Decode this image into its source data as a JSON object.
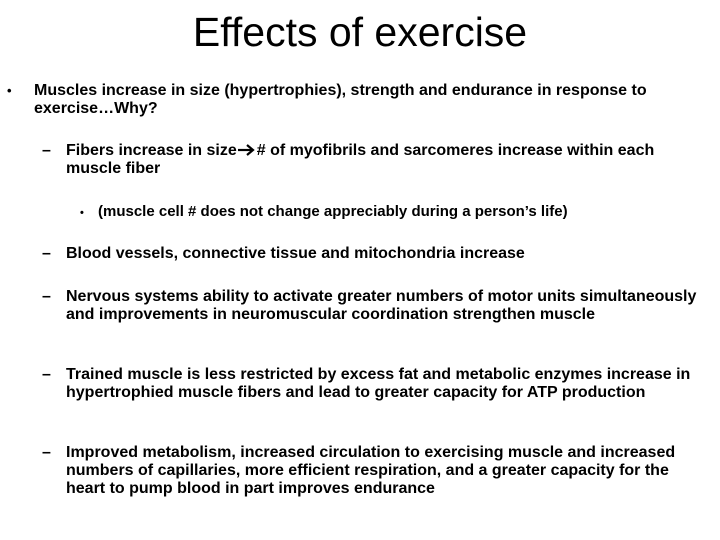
{
  "slide": {
    "title": "Effects of exercise",
    "main_point": "Muscles increase in size (hypertrophies), strength and endurance in response to exercise…Why?",
    "fibers_before_arrow": "Fibers increase in size",
    "fibers_after_arrow": "# of myofibrils and sarcomeres increase within each muscle fiber",
    "cell_note": "(muscle cell # does not change appreciably during a person’s life)",
    "vessels": "Blood vessels, connective tissue and mitochondria increase",
    "nervous": "Nervous systems ability to activate greater numbers of motor units simultaneously and improvements in neuromuscular coordination strengthen muscle",
    "trained": "Trained muscle is less restricted by excess fat and metabolic enzymes increase in hypertrophied muscle fibers and lead to greater capacity for ATP production",
    "metabolism": "Improved metabolism, increased circulation to exercising muscle and increased numbers of capillaries, more efficient respiration, and a greater capacity for the heart to pump blood in part improves endurance",
    "bullet_l1": "•",
    "bullet_l2": "–",
    "bullet_l3": "•"
  },
  "arrow_icon": "right-arrow-icon",
  "colors": {
    "text": "#000000",
    "background": "#ffffff"
  }
}
